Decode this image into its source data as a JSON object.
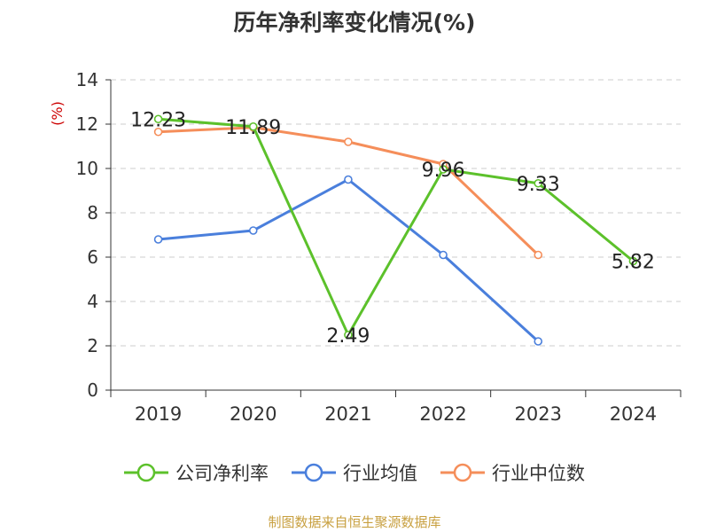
{
  "chart_data": {
    "type": "line",
    "title": "历年净利率变化情况(%)",
    "ylabel": "(%)",
    "xlabel": "",
    "categories": [
      "2019",
      "2020",
      "2021",
      "2022",
      "2023",
      "2024"
    ],
    "ylim": [
      0,
      14
    ],
    "yticks": [
      0,
      2,
      4,
      6,
      8,
      10,
      12,
      14
    ],
    "grid": true,
    "legend_position": "bottom",
    "series": [
      {
        "name": "公司净利率",
        "color": "#5cc12b",
        "values": [
          12.23,
          11.89,
          2.49,
          9.96,
          9.33,
          5.82
        ],
        "labels": [
          "12.23",
          "11.89",
          "2.49",
          "9.96",
          "9.33",
          "5.82"
        ]
      },
      {
        "name": "行业均值",
        "color": "#4a7fdc",
        "values": [
          6.8,
          7.2,
          9.5,
          6.1,
          2.2,
          null
        ]
      },
      {
        "name": "行业中位数",
        "color": "#f58e5a",
        "values": [
          11.65,
          11.85,
          11.2,
          10.2,
          6.1,
          null
        ]
      }
    ]
  },
  "source_note": "制图数据来自恒生聚源数据库"
}
